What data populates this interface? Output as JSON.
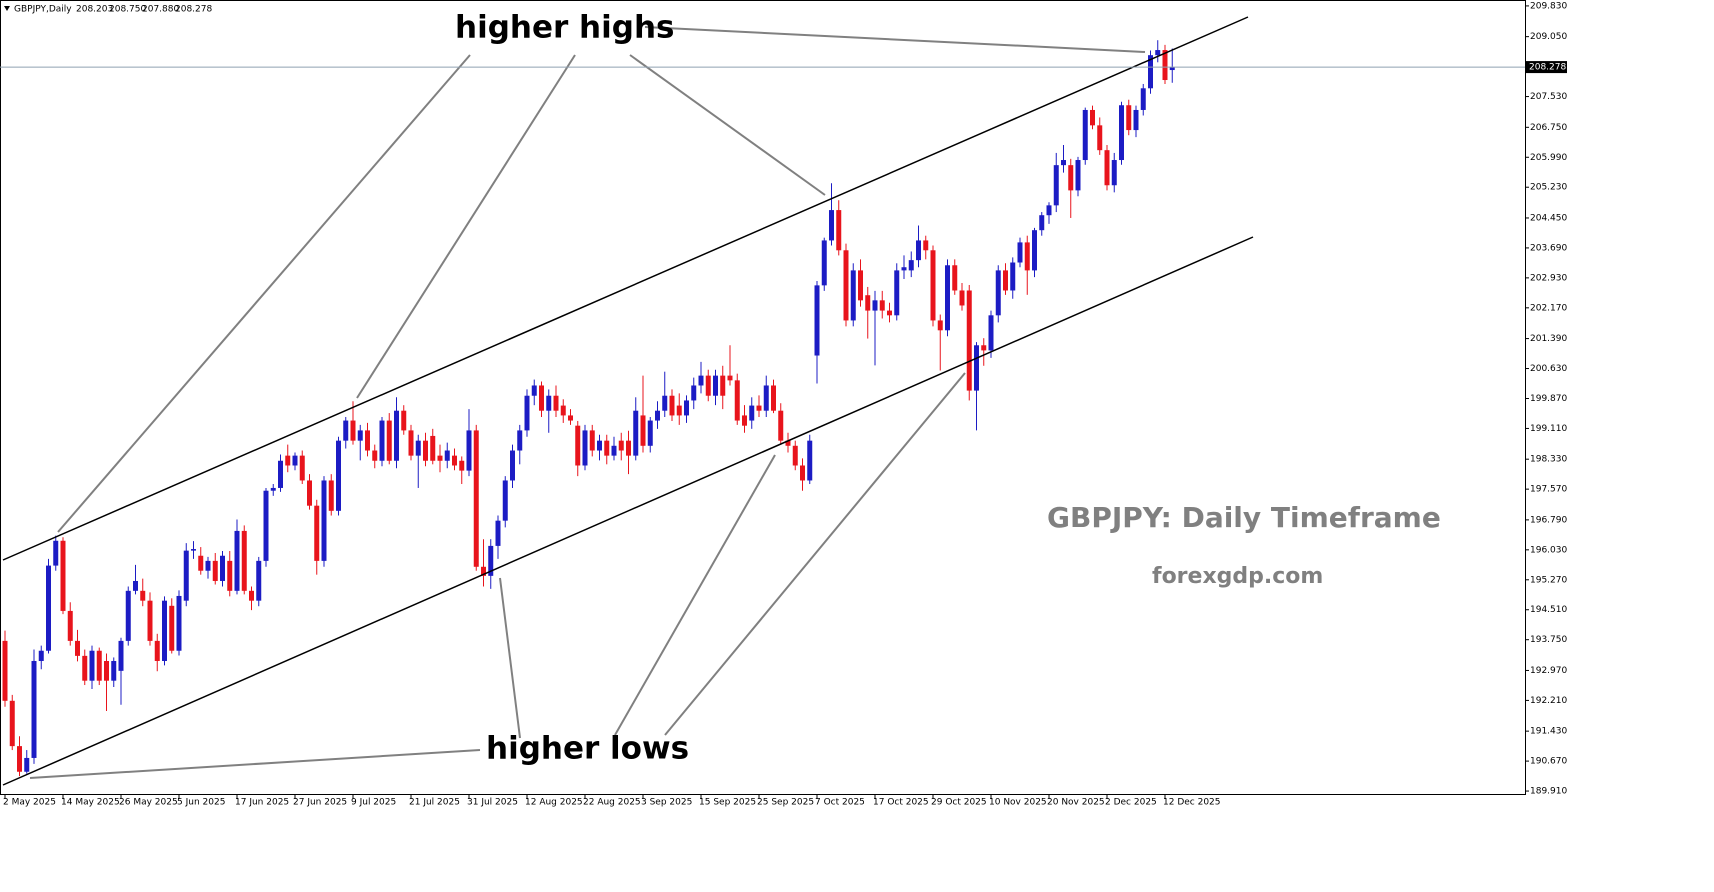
{
  "chart_data": {
    "type": "candlestick",
    "symbol": "GBPJPY,Daily",
    "last_labels": [
      "208.203",
      "208.750",
      "207.880",
      "208.278"
    ],
    "annotations": [
      "higher highs",
      "higher lows"
    ],
    "watermark": "GBPJPY: Daily Timeframe",
    "website": "forexgdp.com",
    "up_color": "#1c1cc4",
    "down_color": "#e8141c",
    "price_line_color": "#8fa0b0",
    "categories": [
      "2 May 2025",
      null,
      null,
      null,
      null,
      null,
      null,
      null,
      "14 May 2025",
      null,
      null,
      null,
      null,
      null,
      null,
      null,
      "26 May 2025",
      null,
      null,
      null,
      null,
      null,
      null,
      null,
      "5 Jun 2025",
      null,
      null,
      null,
      null,
      null,
      null,
      null,
      "17 Jun 2025",
      null,
      null,
      null,
      null,
      null,
      null,
      null,
      "27 Jun 2025",
      null,
      null,
      null,
      null,
      null,
      null,
      null,
      "9 Jul 2025",
      null,
      null,
      null,
      null,
      null,
      null,
      null,
      "21 Jul 2025",
      null,
      null,
      null,
      null,
      null,
      null,
      null,
      "31 Jul 2025",
      null,
      null,
      null,
      null,
      null,
      null,
      null,
      "12 Aug 2025",
      null,
      null,
      null,
      null,
      null,
      null,
      null,
      "22 Aug 2025",
      null,
      null,
      null,
      null,
      null,
      null,
      null,
      "3 Sep 2025",
      null,
      null,
      null,
      null,
      null,
      null,
      null,
      "15 Sep 2025",
      null,
      null,
      null,
      null,
      null,
      null,
      null,
      "25 Sep 2025",
      null,
      null,
      null,
      null,
      null,
      null,
      null,
      "7 Oct 2025",
      null,
      null,
      null,
      null,
      null,
      null,
      null,
      "17 Oct 2025",
      null,
      null,
      null,
      null,
      null,
      null,
      null,
      "29 Oct 2025",
      null,
      null,
      null,
      null,
      null,
      null,
      null,
      "10 Nov 2025",
      null,
      null,
      null,
      null,
      null,
      null,
      null,
      "20 Nov 2025",
      null,
      null,
      null,
      null,
      null,
      null,
      null,
      "2 Dec 2025",
      null,
      null,
      null,
      null,
      null,
      null,
      null,
      "12 Dec 2025",
      null
    ],
    "open": [
      193.72,
      192.2,
      191.05,
      190.4,
      190.75,
      193.21,
      193.47,
      195.63,
      196.26,
      194.48,
      193.72,
      193.34,
      192.71,
      193.47,
      193.21,
      192.71,
      192.96,
      193.72,
      194.99,
      194.99,
      194.74,
      193.72,
      193.21,
      194.61,
      193.47,
      194.74,
      196.01,
      195.88,
      195.5,
      195.75,
      195.24,
      195.75,
      194.99,
      196.51,
      194.99,
      194.74,
      195.75,
      197.53,
      197.6,
      198.42,
      198.17,
      198.42,
      197.79,
      197.15,
      195.75,
      197.79,
      197.02,
      198.8,
      199.31,
      198.8,
      199.06,
      198.55,
      198.29,
      199.31,
      198.29,
      199.56,
      199.06,
      198.42,
      198.8,
      198.92,
      198.42,
      198.29,
      198.42,
      198.29,
      198.04,
      199.06,
      195.6,
      195.37,
      196.13,
      196.77,
      197.79,
      198.55,
      199.06,
      199.94,
      200.2,
      199.56,
      199.94,
      199.69,
      199.44,
      199.18,
      198.17,
      199.06,
      198.55,
      198.8,
      198.42,
      198.8,
      198.8,
      198.42,
      199.44,
      198.67,
      199.31,
      199.56,
      199.94,
      199.69,
      199.44,
      199.82,
      200.2,
      200.45,
      199.94,
      200.45,
      200.45,
      200.33,
      199.44,
      199.31,
      199.69,
      199.56,
      200.2,
      199.56,
      198.8,
      198.67,
      198.17,
      197.79,
      200.96,
      202.74,
      203.88,
      204.65,
      203.63,
      201.85,
      203.12,
      202.49,
      202.1,
      202.36,
      202.1,
      201.98,
      203.12,
      203.12,
      203.38,
      203.88,
      203.63,
      201.85,
      201.6,
      203.25,
      202.61,
      202.61,
      200.07,
      201.22,
      201.09,
      201.98,
      203.12,
      202.61,
      203.32,
      203.83,
      203.12,
      204.14,
      204.52,
      204.77,
      205.79,
      205.79,
      205.15,
      205.92,
      207.19,
      206.8,
      206.17,
      205.28,
      205.92,
      207.31,
      206.68,
      207.19,
      207.74,
      208.58,
      208.71,
      208.203
    ],
    "high": [
      193.98,
      192.35,
      191.3,
      190.95,
      193.5,
      193.6,
      195.8,
      196.39,
      196.35,
      194.7,
      194.0,
      193.5,
      193.6,
      193.55,
      193.4,
      193.3,
      193.8,
      195.1,
      195.65,
      195.3,
      194.95,
      193.9,
      194.85,
      194.8,
      195.0,
      196.2,
      196.25,
      196.1,
      195.85,
      195.95,
      196.0,
      196.0,
      196.8,
      196.65,
      195.1,
      195.85,
      197.6,
      197.7,
      198.45,
      198.7,
      198.5,
      198.55,
      197.95,
      197.3,
      197.9,
      197.95,
      198.9,
      199.4,
      199.8,
      199.2,
      199.25,
      198.7,
      199.4,
      199.5,
      199.9,
      199.7,
      199.2,
      198.95,
      199.0,
      199.1,
      198.7,
      198.75,
      198.6,
      198.4,
      199.6,
      199.2,
      196.3,
      196.3,
      196.9,
      197.9,
      198.7,
      199.2,
      200.1,
      200.35,
      200.3,
      200.1,
      200.2,
      199.85,
      199.6,
      199.3,
      199.2,
      199.2,
      198.95,
      198.95,
      198.9,
      199.0,
      199.05,
      199.9,
      200.45,
      199.4,
      199.8,
      200.55,
      200.1,
      200.0,
      199.95,
      200.4,
      200.8,
      200.6,
      200.6,
      200.7,
      201.22,
      200.5,
      199.7,
      199.9,
      199.95,
      200.45,
      200.35,
      199.75,
      199.0,
      198.8,
      198.35,
      198.95,
      202.85,
      203.95,
      205.33,
      204.9,
      203.8,
      203.3,
      203.4,
      202.7,
      202.6,
      202.6,
      202.3,
      203.3,
      203.5,
      203.6,
      204.26,
      204.0,
      203.75,
      202.0,
      203.4,
      203.4,
      202.8,
      202.75,
      201.3,
      201.4,
      202.1,
      203.25,
      203.3,
      203.45,
      203.95,
      204.0,
      204.2,
      204.6,
      204.85,
      206.1,
      206.3,
      205.95,
      206.0,
      207.25,
      207.3,
      207.0,
      206.3,
      206.1,
      207.4,
      207.45,
      207.3,
      207.85,
      208.7,
      208.96,
      208.84,
      208.75
    ],
    "low": [
      192.05,
      190.95,
      190.29,
      190.35,
      190.6,
      193.0,
      193.4,
      195.5,
      194.4,
      193.6,
      193.2,
      192.6,
      192.5,
      192.6,
      191.94,
      192.55,
      192.1,
      193.6,
      194.9,
      194.6,
      193.6,
      192.95,
      193.1,
      193.4,
      193.35,
      194.6,
      195.8,
      195.4,
      195.3,
      195.15,
      195.1,
      194.85,
      194.9,
      194.9,
      194.5,
      194.6,
      195.6,
      197.4,
      197.5,
      198.0,
      198.05,
      197.7,
      197.05,
      195.4,
      195.6,
      196.9,
      196.9,
      198.6,
      198.7,
      198.3,
      198.4,
      198.1,
      198.15,
      198.2,
      198.1,
      198.95,
      198.3,
      197.6,
      198.15,
      198.2,
      198.0,
      198.1,
      198.05,
      197.7,
      197.9,
      195.5,
      195.1,
      195.04,
      195.8,
      196.6,
      197.6,
      198.2,
      198.9,
      199.7,
      199.4,
      199.0,
      199.4,
      199.25,
      199.2,
      197.9,
      198.05,
      198.4,
      198.3,
      198.2,
      198.3,
      198.3,
      197.95,
      198.3,
      198.5,
      198.5,
      199.1,
      199.4,
      199.3,
      199.2,
      199.25,
      199.6,
      200.0,
      199.8,
      199.7,
      199.6,
      200.2,
      199.2,
      199.0,
      199.1,
      199.4,
      199.4,
      199.5,
      198.7,
      198.5,
      198.05,
      197.53,
      197.7,
      200.25,
      202.6,
      203.75,
      203.5,
      201.7,
      201.7,
      202.2,
      201.39,
      200.71,
      201.9,
      201.8,
      201.85,
      202.9,
      202.95,
      203.2,
      203.4,
      201.7,
      200.58,
      201.45,
      202.5,
      202.1,
      199.82,
      199.06,
      200.7,
      200.9,
      201.8,
      202.5,
      202.4,
      203.2,
      202.5,
      202.95,
      204.0,
      204.3,
      204.6,
      205.6,
      204.45,
      205.0,
      205.8,
      206.7,
      206.05,
      205.15,
      205.1,
      205.8,
      206.55,
      206.5,
      207.05,
      207.6,
      208.4,
      207.85,
      207.88
    ],
    "close": [
      192.2,
      191.05,
      190.4,
      190.75,
      193.21,
      193.47,
      195.63,
      196.26,
      194.48,
      193.72,
      193.34,
      192.71,
      193.47,
      192.71,
      192.71,
      193.21,
      193.72,
      194.99,
      195.24,
      194.74,
      193.72,
      193.21,
      194.74,
      193.47,
      194.86,
      196.01,
      196.05,
      195.5,
      195.75,
      195.24,
      195.88,
      194.99,
      196.51,
      194.99,
      194.74,
      195.75,
      197.53,
      197.6,
      198.29,
      198.17,
      198.42,
      197.79,
      197.15,
      195.75,
      197.79,
      197.02,
      198.8,
      199.31,
      198.8,
      199.06,
      198.55,
      198.29,
      199.31,
      198.29,
      199.56,
      199.06,
      198.42,
      198.8,
      198.29,
      198.29,
      198.29,
      198.55,
      198.17,
      198.04,
      199.06,
      195.6,
      195.37,
      196.13,
      196.77,
      197.79,
      198.55,
      199.06,
      199.94,
      200.2,
      199.56,
      199.94,
      199.56,
      199.44,
      199.31,
      198.17,
      199.06,
      198.55,
      198.8,
      198.42,
      198.67,
      198.55,
      198.42,
      199.56,
      198.67,
      199.31,
      199.56,
      199.94,
      199.44,
      199.44,
      199.82,
      200.2,
      200.45,
      199.94,
      200.45,
      199.94,
      200.33,
      199.31,
      199.18,
      199.69,
      199.56,
      200.2,
      199.56,
      198.8,
      198.67,
      198.17,
      197.79,
      198.8,
      202.74,
      203.88,
      204.65,
      203.63,
      201.85,
      203.12,
      202.36,
      202.1,
      202.36,
      202.1,
      201.98,
      203.12,
      203.2,
      203.38,
      203.88,
      203.63,
      201.85,
      201.6,
      203.25,
      202.61,
      202.23,
      200.07,
      201.22,
      201.09,
      201.98,
      203.12,
      202.61,
      203.32,
      203.83,
      203.12,
      204.14,
      204.52,
      204.77,
      205.79,
      205.92,
      205.15,
      205.92,
      207.19,
      206.8,
      206.17,
      205.28,
      205.92,
      207.31,
      206.68,
      207.19,
      207.74,
      208.58,
      208.71,
      207.95,
      208.278
    ],
    "ylim": [
      189.81,
      209.98
    ],
    "yticks": [
      {
        "value": 209.83,
        "label": "209.830"
      },
      {
        "value": 209.05,
        "label": "209.050"
      },
      {
        "value": 207.53,
        "label": "207.530"
      },
      {
        "value": 206.75,
        "label": "206.750"
      },
      {
        "value": 205.99,
        "label": "205.990"
      },
      {
        "value": 205.23,
        "label": "205.230"
      },
      {
        "value": 204.45,
        "label": "204.450"
      },
      {
        "value": 203.69,
        "label": "203.690"
      },
      {
        "value": 202.93,
        "label": "202.930"
      },
      {
        "value": 202.17,
        "label": "202.170"
      },
      {
        "value": 201.39,
        "label": "201.390"
      },
      {
        "value": 200.63,
        "label": "200.630"
      },
      {
        "value": 199.87,
        "label": "199.870"
      },
      {
        "value": 199.11,
        "label": "199.110"
      },
      {
        "value": 198.33,
        "label": "198.330"
      },
      {
        "value": 197.57,
        "label": "197.570"
      },
      {
        "value": 196.79,
        "label": "196.790"
      },
      {
        "value": 196.03,
        "label": "196.030"
      },
      {
        "value": 195.27,
        "label": "195.270"
      },
      {
        "value": 194.51,
        "label": "194.510"
      },
      {
        "value": 193.75,
        "label": "193.750"
      },
      {
        "value": 192.97,
        "label": "192.970"
      },
      {
        "value": 192.21,
        "label": "192.210"
      },
      {
        "value": 191.43,
        "label": "191.430"
      },
      {
        "value": 190.67,
        "label": "190.670"
      },
      {
        "value": 189.91,
        "label": "189.910"
      }
    ]
  }
}
